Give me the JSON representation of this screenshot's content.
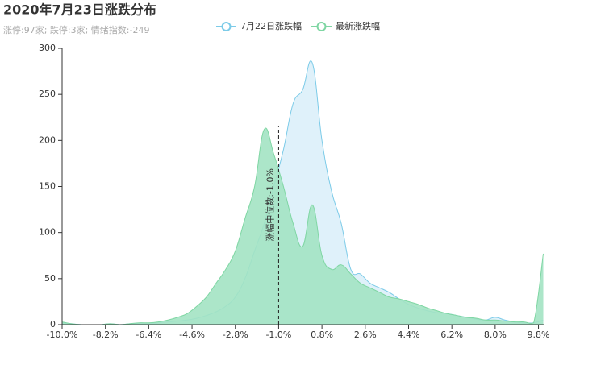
{
  "chart_data": {
    "type": "area",
    "title": "2020年7月23日涨跌分布",
    "subtitle": "涨停:97家; 跌停:3家; 情绪指数:-249",
    "x": [
      -10,
      -9.6,
      -9.2,
      -8.8,
      -8.4,
      -8,
      -7.6,
      -7.2,
      -6.8,
      -6.4,
      -6,
      -5.6,
      -5.2,
      -4.8,
      -4.4,
      -4,
      -3.6,
      -3.2,
      -2.8,
      -2.4,
      -2,
      -1.6,
      -1.2,
      -0.8,
      -0.4,
      0,
      0.4,
      0.8,
      1.2,
      1.6,
      2,
      2.4,
      2.8,
      3.2,
      3.6,
      4,
      4.4,
      4.8,
      5.2,
      5.6,
      6,
      6.4,
      6.8,
      7.2,
      7.6,
      8,
      8.4,
      8.8,
      9.2,
      9.6,
      10
    ],
    "series": [
      {
        "name": "7月22日涨跌幅",
        "color": "#7ccbe8",
        "fill": "#dff1fa",
        "values": [
          2,
          1,
          0,
          0,
          0,
          1,
          0,
          1,
          1,
          1,
          2,
          3,
          4,
          5,
          7,
          10,
          14,
          20,
          30,
          50,
          80,
          110,
          150,
          190,
          240,
          255,
          284,
          200,
          145,
          110,
          60,
          55,
          45,
          40,
          35,
          28,
          22,
          18,
          15,
          13,
          12,
          10,
          8,
          6,
          5,
          8,
          5,
          3,
          2,
          2,
          5
        ]
      },
      {
        "name": "最新涨跌幅",
        "color": "#7fd6a3",
        "fill": "#a3e3c3",
        "values": [
          3,
          1,
          0,
          0,
          0,
          1,
          0,
          1,
          2,
          2,
          3,
          5,
          8,
          12,
          20,
          30,
          45,
          60,
          80,
          115,
          150,
          212,
          185,
          150,
          110,
          85,
          130,
          75,
          60,
          65,
          55,
          45,
          40,
          35,
          30,
          28,
          25,
          22,
          18,
          15,
          12,
          10,
          8,
          7,
          5,
          5,
          4,
          3,
          3,
          2,
          77
        ]
      }
    ],
    "median": {
      "value": -1.0,
      "label": "涨幅中位数:-1.0%"
    },
    "xlim": [
      -10,
      10.05
    ],
    "xticks": [
      {
        "value": -10,
        "label": "-10.0%"
      },
      {
        "value": -8.2,
        "label": "-8.2%"
      },
      {
        "value": -6.4,
        "label": "-6.4%"
      },
      {
        "value": -4.6,
        "label": "-4.6%"
      },
      {
        "value": -2.8,
        "label": "-2.8%"
      },
      {
        "value": -1.0,
        "label": "-1.0%"
      },
      {
        "value": 0.8,
        "label": "0.8%"
      },
      {
        "value": 2.6,
        "label": "2.6%"
      },
      {
        "value": 4.4,
        "label": "4.4%"
      },
      {
        "value": 6.2,
        "label": "6.2%"
      },
      {
        "value": 8.0,
        "label": "8.0%"
      },
      {
        "value": 9.8,
        "label": "9.8%"
      }
    ],
    "ylim": [
      0,
      300
    ],
    "yticks": [
      0,
      50,
      100,
      150,
      200,
      250,
      300
    ]
  }
}
